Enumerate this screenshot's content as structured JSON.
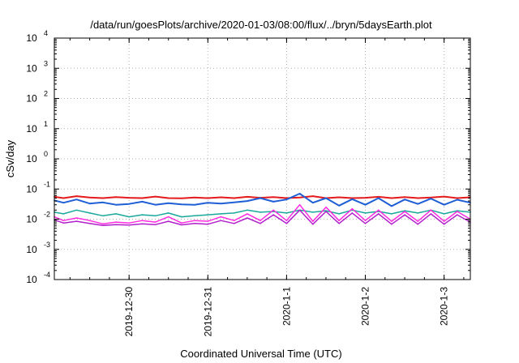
{
  "chart_data": {
    "type": "line",
    "title": "/data/run/goesPlots/archive/2020-01-03/08:00/flux/../bryn/5daysEarth.plot",
    "xlabel": "Coordinated Universal Time (UTC)",
    "ylabel": "cSv/day",
    "yscale": "log",
    "ylim": [
      0.0001,
      10000
    ],
    "xlim": [
      "2019-12-29T01:13",
      "2020-01-03T08:00"
    ],
    "grid": true,
    "legend": "none",
    "x_ticks": [
      {
        "label": "2019-12-30",
        "value": "2019-12-30T00:00"
      },
      {
        "label": "2019-12-31",
        "value": "2019-12-31T00:00"
      },
      {
        "label": "2020-1-1",
        "value": "2020-01-01T00:00"
      },
      {
        "label": "2020-1-2",
        "value": "2020-01-02T00:00"
      },
      {
        "label": "2020-1-3",
        "value": "2020-01-03T00:00"
      }
    ],
    "y_ticks": [
      {
        "base": "10",
        "exp": "-4",
        "value": 0.0001
      },
      {
        "base": "10",
        "exp": "-3",
        "value": 0.001
      },
      {
        "base": "10",
        "exp": "-2",
        "value": 0.01
      },
      {
        "base": "10",
        "exp": "-1",
        "value": 0.1
      },
      {
        "base": "10",
        "exp": "0",
        "value": 1
      },
      {
        "base": "10",
        "exp": "1",
        "value": 10
      },
      {
        "base": "10",
        "exp": "2",
        "value": 100
      },
      {
        "base": "10",
        "exp": "3",
        "value": 1000
      },
      {
        "base": "10",
        "exp": "4",
        "value": 10000
      }
    ],
    "x": [
      "2019-12-29T01:13",
      "2019-12-29T04:00",
      "2019-12-29T08:00",
      "2019-12-29T12:00",
      "2019-12-29T16:00",
      "2019-12-29T20:00",
      "2019-12-30T00:00",
      "2019-12-30T04:00",
      "2019-12-30T08:00",
      "2019-12-30T12:00",
      "2019-12-30T16:00",
      "2019-12-30T20:00",
      "2019-12-31T00:00",
      "2019-12-31T04:00",
      "2019-12-31T08:00",
      "2019-12-31T12:00",
      "2019-12-31T16:00",
      "2019-12-31T20:00",
      "2020-01-01T00:00",
      "2020-01-01T04:00",
      "2020-01-01T08:00",
      "2020-01-01T12:00",
      "2020-01-01T16:00",
      "2020-01-01T20:00",
      "2020-01-02T00:00",
      "2020-01-02T04:00",
      "2020-01-02T08:00",
      "2020-01-02T12:00",
      "2020-01-02T16:00",
      "2020-01-02T20:00",
      "2020-01-03T00:00",
      "2020-01-03T04:00",
      "2020-01-03T08:00"
    ],
    "series": [
      {
        "color": "#e41a1c",
        "width": 2,
        "values": [
          0.055,
          0.05,
          0.058,
          0.052,
          0.05,
          0.054,
          0.051,
          0.05,
          0.056,
          0.05,
          0.049,
          0.052,
          0.05,
          0.053,
          0.05,
          0.055,
          0.051,
          0.054,
          0.05,
          0.052,
          0.058,
          0.05,
          0.053,
          0.05,
          0.051,
          0.055,
          0.05,
          0.054,
          0.05,
          0.052,
          0.056,
          0.05,
          0.053
        ]
      },
      {
        "color": "#1f5fd6",
        "width": 2,
        "values": [
          0.042,
          0.035,
          0.045,
          0.033,
          0.036,
          0.03,
          0.032,
          0.038,
          0.03,
          0.034,
          0.031,
          0.03,
          0.035,
          0.033,
          0.036,
          0.04,
          0.05,
          0.038,
          0.045,
          0.07,
          0.035,
          0.05,
          0.028,
          0.046,
          0.03,
          0.05,
          0.027,
          0.045,
          0.032,
          0.048,
          0.03,
          0.044,
          0.035
        ]
      },
      {
        "color": "#1aa89c",
        "width": 1.5,
        "values": [
          0.017,
          0.015,
          0.02,
          0.016,
          0.013,
          0.015,
          0.012,
          0.014,
          0.013,
          0.016,
          0.012,
          0.013,
          0.014,
          0.015,
          0.016,
          0.02,
          0.017,
          0.018,
          0.016,
          0.02,
          0.017,
          0.019,
          0.015,
          0.02,
          0.016,
          0.018,
          0.015,
          0.019,
          0.016,
          0.02,
          0.015,
          0.019,
          0.017
        ]
      },
      {
        "color": "#ff2be0",
        "width": 1.5,
        "values": [
          0.012,
          0.009,
          0.011,
          0.009,
          0.007,
          0.008,
          0.0075,
          0.009,
          0.008,
          0.012,
          0.0075,
          0.009,
          0.0085,
          0.012,
          0.009,
          0.015,
          0.009,
          0.02,
          0.009,
          0.03,
          0.0085,
          0.025,
          0.009,
          0.022,
          0.009,
          0.02,
          0.0085,
          0.018,
          0.0085,
          0.02,
          0.0085,
          0.018,
          0.01
        ]
      },
      {
        "color": "#b21fcc",
        "width": 1.5,
        "values": [
          0.0095,
          0.0075,
          0.0085,
          0.0072,
          0.0062,
          0.0066,
          0.0064,
          0.007,
          0.0066,
          0.0085,
          0.0065,
          0.0072,
          0.0068,
          0.009,
          0.0072,
          0.011,
          0.0072,
          0.014,
          0.0072,
          0.02,
          0.0068,
          0.018,
          0.0072,
          0.016,
          0.0072,
          0.015,
          0.0068,
          0.014,
          0.0068,
          0.015,
          0.0068,
          0.014,
          0.008
        ]
      }
    ]
  }
}
